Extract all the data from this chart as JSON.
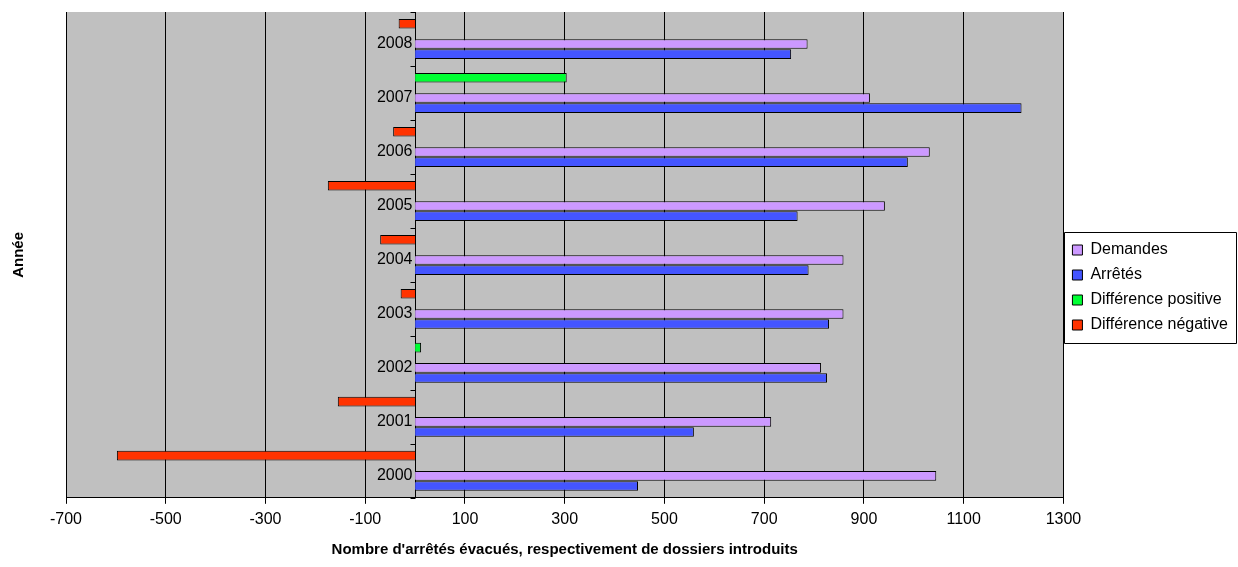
{
  "chart_data": {
    "type": "bar",
    "orientation": "horizontal",
    "xlabel": "Nombre d'arrêtés évacués, respectivement de dossiers introduits",
    "ylabel": "Année",
    "categories": [
      "2008",
      "2007",
      "2006",
      "2005",
      "2004",
      "2003",
      "2002",
      "2001",
      "2000"
    ],
    "series": [
      {
        "name": "Demandes",
        "color": "#cc99ff",
        "values": [
          787,
          912,
          1032,
          942,
          859,
          859,
          814,
          714,
          1045
        ]
      },
      {
        "name": "Arrêtés",
        "color": "#4455ff",
        "values": [
          754,
          1216,
          988,
          767,
          789,
          830,
          826,
          559,
          447
        ]
      },
      {
        "name": "Différence positive",
        "color": "#00ff33",
        "values": [
          null,
          304,
          null,
          null,
          null,
          null,
          12,
          null,
          null
        ]
      },
      {
        "name": "Différence négative",
        "color": "#ff3300",
        "values": [
          -33,
          null,
          -44,
          -175,
          -70,
          -29,
          null,
          -155,
          -598
        ]
      }
    ],
    "xlim": [
      -700,
      1300
    ],
    "xticks": [
      -700,
      -500,
      -300,
      -100,
      100,
      300,
      500,
      700,
      900,
      1100,
      1300
    ],
    "grid": "x",
    "legend": "right"
  }
}
